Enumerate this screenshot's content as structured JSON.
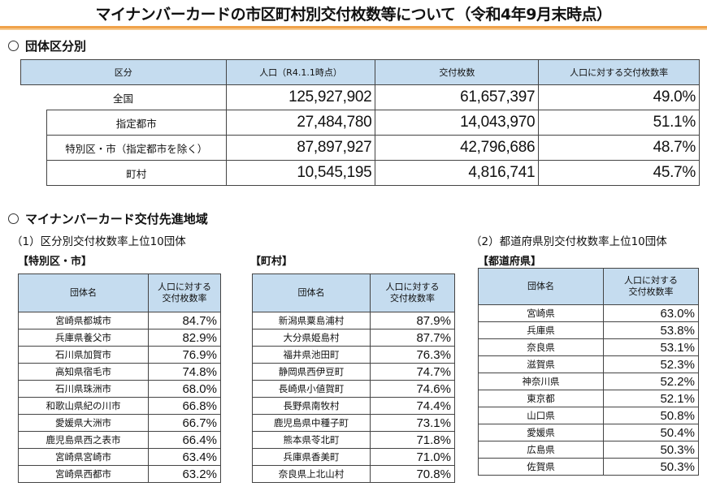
{
  "title": "マイナンバーカードの市区町村別交付枚数等について（令和4年9月末時点）",
  "section1": {
    "heading": "団体区分別",
    "headers": [
      "区分",
      "人口（R4.1.1時点）",
      "交付枚数",
      "人口に対する交付枚数率"
    ],
    "rows": [
      {
        "label": "全国",
        "population": "125,927,902",
        "issued": "61,657,397",
        "rate": "49.0%"
      },
      {
        "label": "指定都市",
        "population": "27,484,780",
        "issued": "14,043,970",
        "rate": "51.1%"
      },
      {
        "label": "特別区・市（指定都市を除く）",
        "population": "87,897,927",
        "issued": "42,796,686",
        "rate": "48.7%"
      },
      {
        "label": "町村",
        "population": "10,545,195",
        "issued": "4,816,741",
        "rate": "45.7%"
      }
    ]
  },
  "section2": {
    "heading": "マイナンバーカード交付先進地域",
    "sub1": "（1）区分別交付枚数率上位10団体",
    "sub2": "（2）都道府県別交付枚数率上位10団体",
    "col_name": "団体名",
    "col_rate_line1": "人口に対する",
    "col_rate_line2": "交付枚数率",
    "tables": [
      {
        "caption": "【特別区・市】",
        "rows": [
          [
            "宮崎県都城市",
            "84.7%"
          ],
          [
            "兵庫県養父市",
            "82.9%"
          ],
          [
            "石川県加賀市",
            "76.9%"
          ],
          [
            "高知県宿毛市",
            "74.8%"
          ],
          [
            "石川県珠洲市",
            "68.0%"
          ],
          [
            "和歌山県紀の川市",
            "66.8%"
          ],
          [
            "愛媛県大洲市",
            "66.7%"
          ],
          [
            "鹿児島県西之表市",
            "66.4%"
          ],
          [
            "宮崎県宮崎市",
            "63.4%"
          ],
          [
            "宮崎県西都市",
            "63.2%"
          ]
        ]
      },
      {
        "caption": "【町村】",
        "rows": [
          [
            "新潟県粟島浦村",
            "87.9%"
          ],
          [
            "大分県姫島村",
            "87.7%"
          ],
          [
            "福井県池田町",
            "76.3%"
          ],
          [
            "静岡県西伊豆町",
            "74.7%"
          ],
          [
            "長崎県小値賀町",
            "74.6%"
          ],
          [
            "長野県南牧村",
            "74.4%"
          ],
          [
            "鹿児島県中種子町",
            "73.1%"
          ],
          [
            "熊本県苓北町",
            "71.8%"
          ],
          [
            "兵庫県香美町",
            "71.0%"
          ],
          [
            "奈良県上北山村",
            "70.8%"
          ]
        ]
      },
      {
        "caption": "【都道府県】",
        "rows": [
          [
            "宮崎県",
            "63.0%"
          ],
          [
            "兵庫県",
            "53.8%"
          ],
          [
            "奈良県",
            "53.1%"
          ],
          [
            "滋賀県",
            "52.3%"
          ],
          [
            "神奈川県",
            "52.2%"
          ],
          [
            "東京都",
            "52.1%"
          ],
          [
            "山口県",
            "50.8%"
          ],
          [
            "愛媛県",
            "50.4%"
          ],
          [
            "広島県",
            "50.3%"
          ],
          [
            "佐賀県",
            "50.3%"
          ]
        ]
      }
    ]
  },
  "colors": {
    "accent_rule": "#f0a24a",
    "header_fill": "#c5dcef"
  }
}
